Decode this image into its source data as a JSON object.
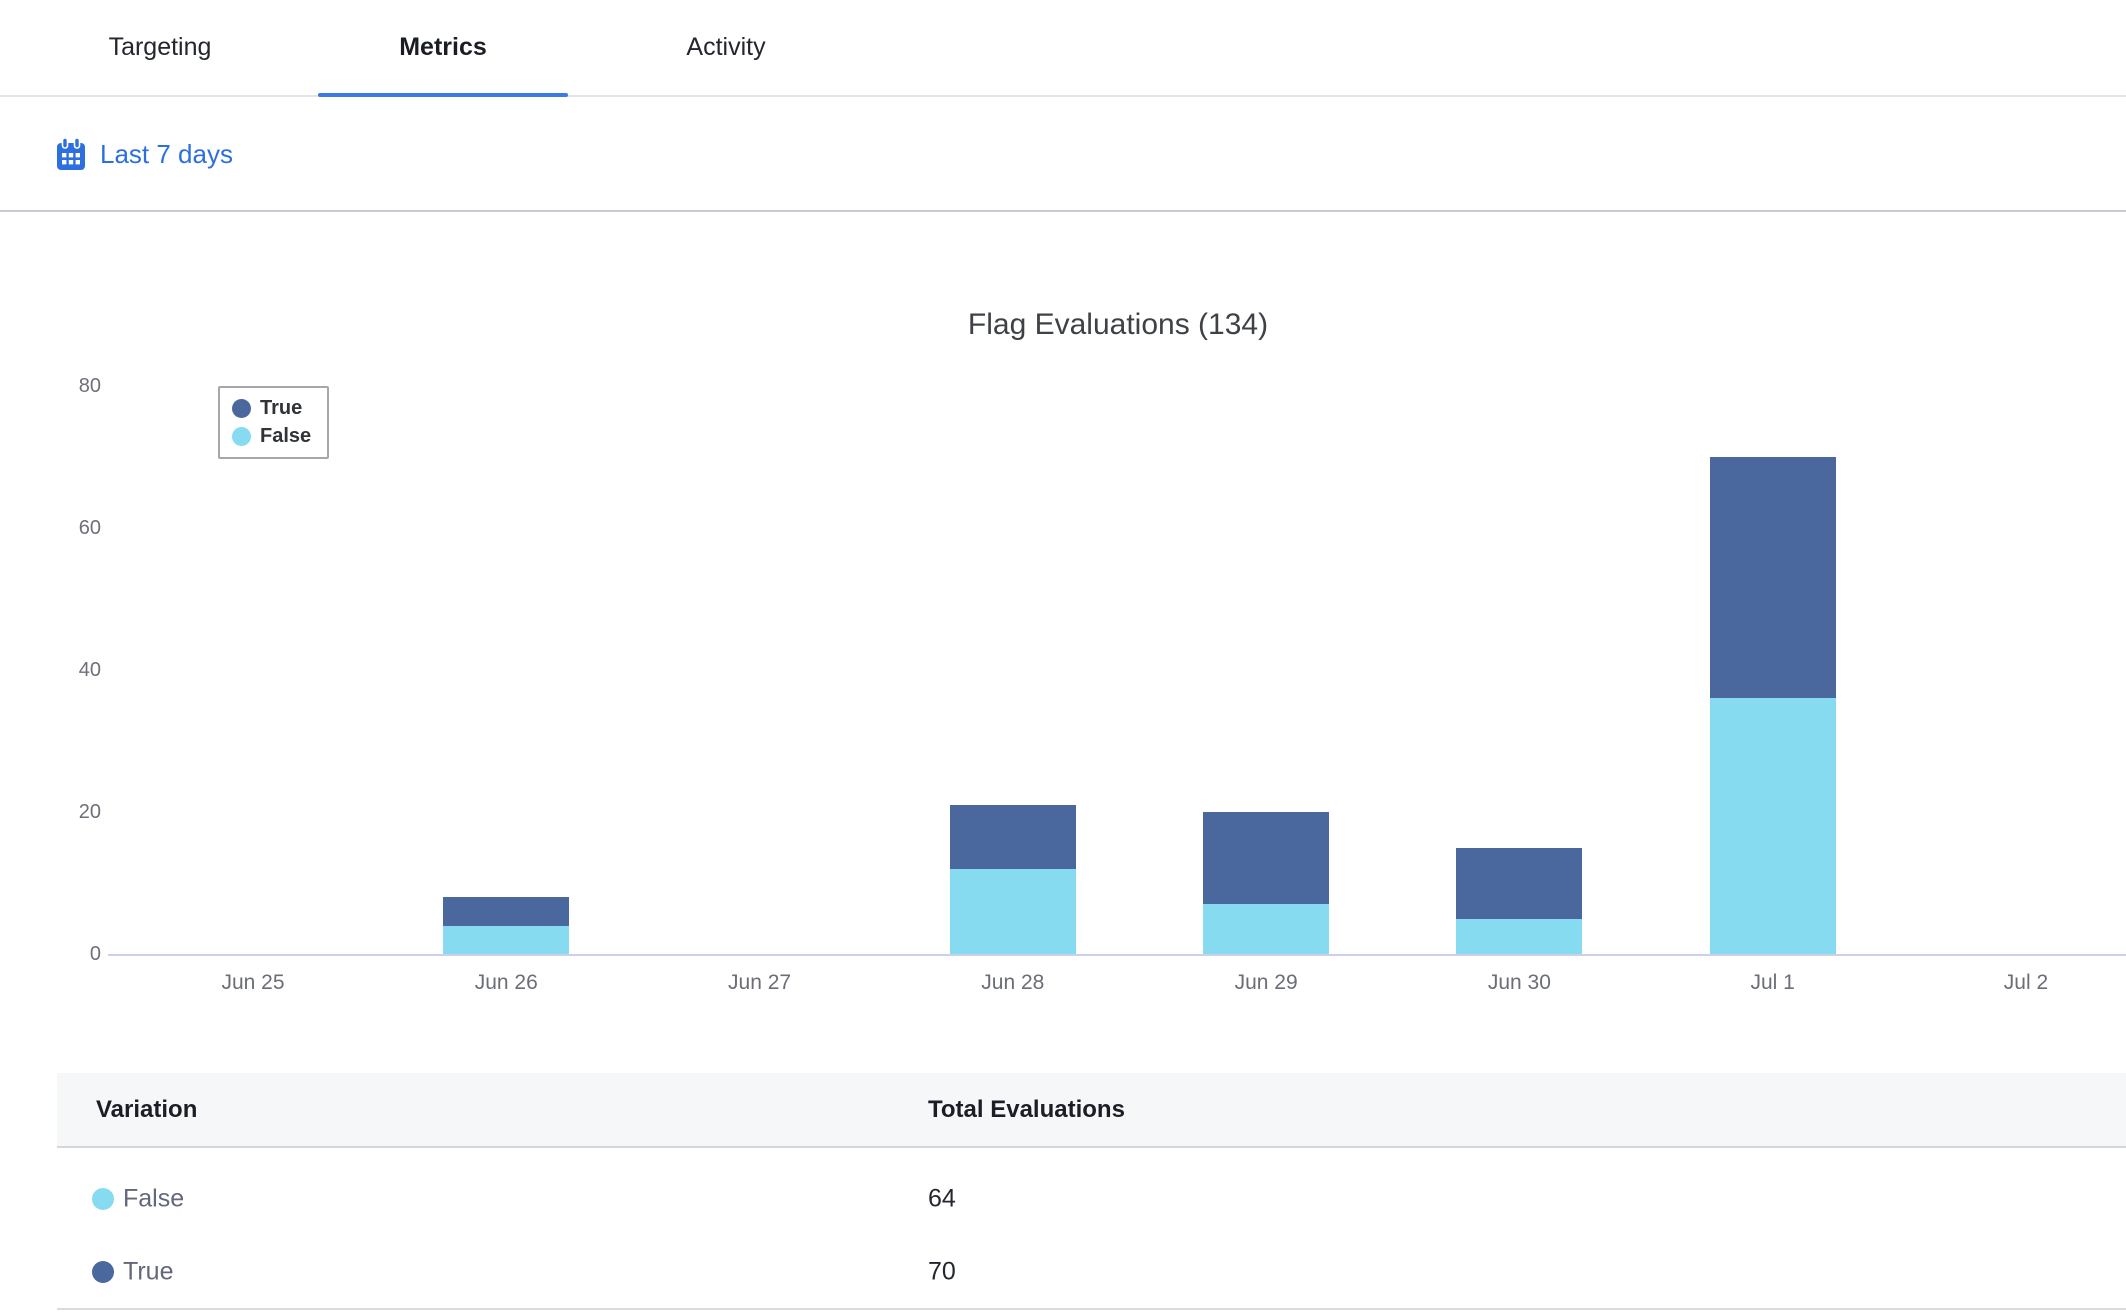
{
  "tabs": [
    {
      "label": "Targeting",
      "active": false
    },
    {
      "label": "Metrics",
      "active": true
    },
    {
      "label": "Activity",
      "active": false
    }
  ],
  "filter": {
    "date_range_label": "Last 7 days",
    "icon": "calendar-icon"
  },
  "chart_data": {
    "type": "bar",
    "stacked": true,
    "title": "Flag Evaluations (134)",
    "total_evaluations": 134,
    "categories": [
      "Jun 25",
      "Jun 26",
      "Jun 27",
      "Jun 28",
      "Jun 29",
      "Jun 30",
      "Jul 1",
      "Jul 2"
    ],
    "series": [
      {
        "name": "True",
        "color": "#4A679E",
        "values": [
          0,
          4,
          0,
          9,
          13,
          10,
          34,
          0
        ]
      },
      {
        "name": "False",
        "color": "#86DBF0",
        "values": [
          0,
          4,
          0,
          12,
          7,
          5,
          36,
          0
        ]
      }
    ],
    "stack_order_bottom_to_top": [
      "False",
      "True"
    ],
    "category_totals": [
      0,
      8,
      0,
      21,
      20,
      15,
      70,
      0
    ],
    "ylim": [
      0,
      80
    ],
    "yticks": [
      0,
      20,
      40,
      60,
      80
    ],
    "grid": false,
    "legend_position": "top-left",
    "legend_order": [
      "True",
      "False"
    ]
  },
  "table": {
    "columns": [
      "Variation",
      "Total Evaluations"
    ],
    "rows": [
      {
        "variation": "False",
        "color": "#86DBF0",
        "total_evaluations": "64"
      },
      {
        "variation": "True",
        "color": "#4A679E",
        "total_evaluations": "70"
      }
    ]
  },
  "colors": {
    "accent_blue": "#2E6FE0",
    "tab_underline": "#3B79E3",
    "axis_line": "#CBD1E8",
    "true_series": "#4A679E",
    "false_series": "#86DBF0"
  }
}
